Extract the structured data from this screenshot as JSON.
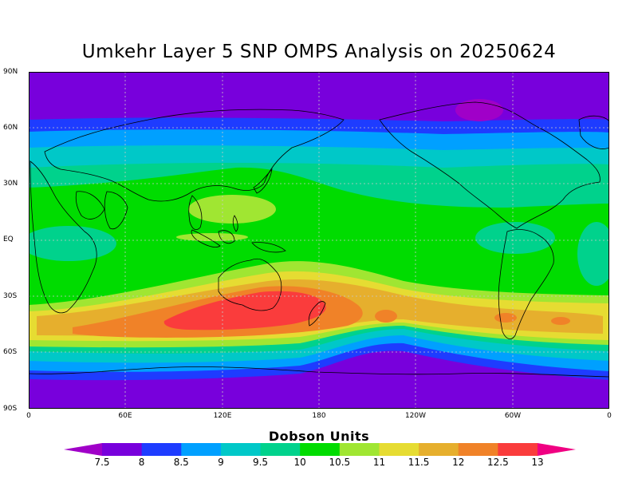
{
  "title": "Umkehr Layer 5 SNP OMPS Analysis on 20250624",
  "lat_labels": [
    "90N",
    "60N",
    "30N",
    "EQ",
    "30S",
    "60S",
    "90S"
  ],
  "lon_labels": [
    "0",
    "60E",
    "120E",
    "180",
    "120W",
    "60W",
    "0"
  ],
  "colorbar": {
    "title": "Dobson Units",
    "levels": [
      "7.5",
      "8",
      "8.5",
      "9",
      "9.5",
      "10",
      "10.5",
      "11",
      "11.5",
      "12",
      "12.5",
      "13"
    ],
    "colors": [
      "#a000c8",
      "#7800dc",
      "#1e3cff",
      "#00a0ff",
      "#00c8c8",
      "#00d28c",
      "#00dc00",
      "#a0e632",
      "#e6dc32",
      "#e6af2d",
      "#f08228",
      "#fa3c3c",
      "#f00082"
    ]
  },
  "map": {
    "ocean_background_color": "#7800dc",
    "grid_style": "dotted"
  }
}
